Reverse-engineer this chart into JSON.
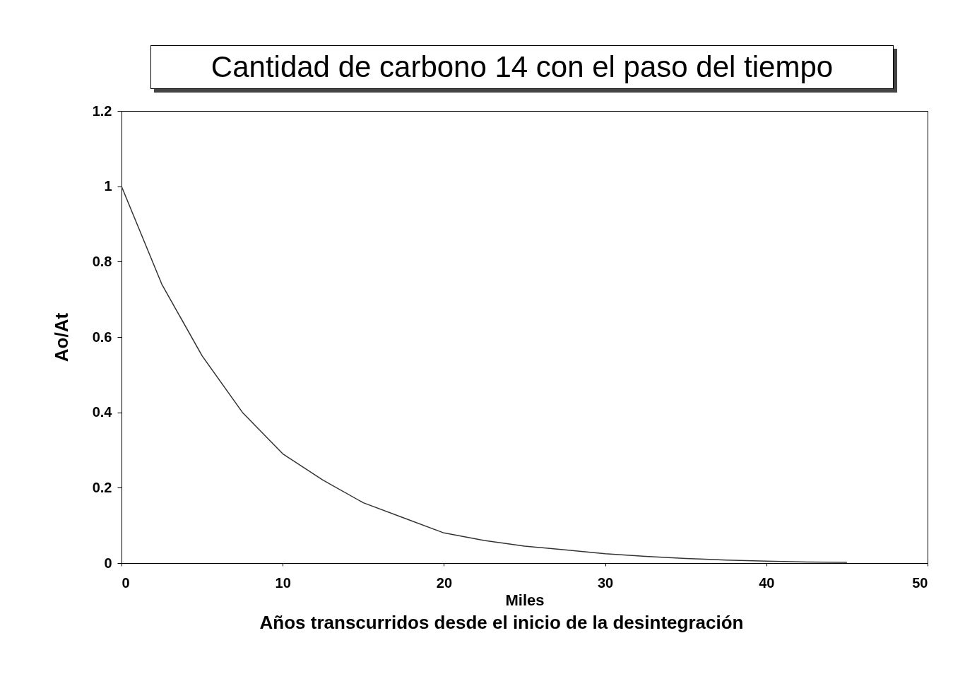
{
  "chart_data": {
    "type": "line",
    "title": "Cantidad de carbono 14 con el paso del tiempo",
    "xlabel": "Miles",
    "ylabel": "Ao/At",
    "annotations": [
      "Años transcurridos desde el inicio de la desintegración"
    ],
    "x": [
      0,
      2.5,
      5,
      7.5,
      10,
      12.5,
      15,
      17.5,
      20,
      22.5,
      25,
      27.5,
      30,
      32.5,
      35,
      37.5,
      40,
      42.5,
      45
    ],
    "series": [
      {
        "color": "#333333",
        "values": [
          1.0,
          0.74,
          0.55,
          0.4,
          0.29,
          0.22,
          0.16,
          0.12,
          0.08,
          0.06,
          0.045,
          0.035,
          0.025,
          0.018,
          0.012,
          0.008,
          0.005,
          0.003,
          0.002
        ]
      }
    ],
    "xlim": [
      0,
      50
    ],
    "xticks": [
      0,
      10,
      20,
      30,
      40,
      50
    ],
    "ylim": [
      0,
      1.2
    ],
    "yticks": [
      0,
      0.2,
      0.4,
      0.6,
      0.8,
      1,
      1.2
    ],
    "grid": false,
    "legend": false,
    "marker": "none",
    "line_style": "solid"
  }
}
